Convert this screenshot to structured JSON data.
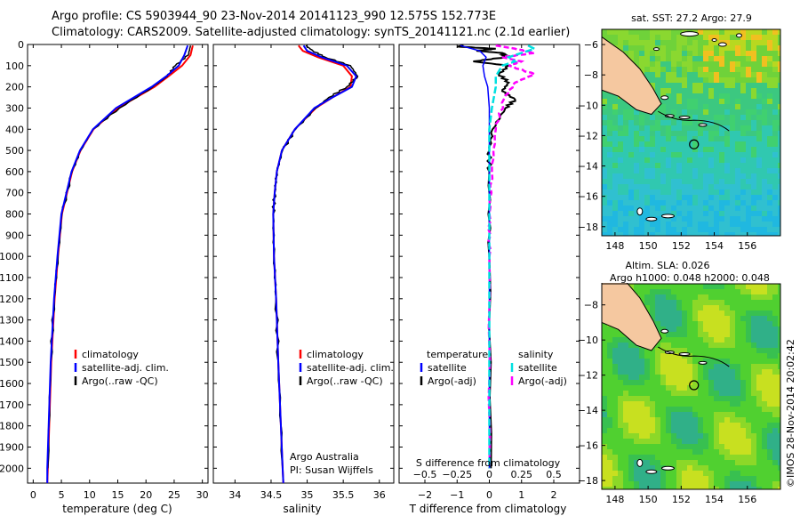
{
  "header": {
    "line1": "Argo profile: CS 5903944_90 23-Nov-2014 20141123_990 12.575S 152.773E",
    "line2": "Climatology: CARS2009. Satellite-adjusted climatology: synTS_20141121.nc (2.1d earlier)"
  },
  "colors": {
    "climatology": "#ff0000",
    "satellite": "#0000ff",
    "argo": "#000000",
    "sat_salinity": "#00e0e0",
    "argo_salinity": "#ff00ff",
    "land": "#f5c8a0"
  },
  "chart_data": [
    {
      "type": "line",
      "id": "temperature",
      "xlabel": "temperature (deg C)",
      "ylabel": "",
      "xlim": [
        -1,
        31
      ],
      "ylim": [
        2070,
        0
      ],
      "xticks": [
        0,
        5,
        10,
        15,
        20,
        25,
        30
      ],
      "xtick_labels": [
        "0",
        "5",
        "10",
        "15",
        "20",
        "25",
        "30"
      ],
      "yticks": [
        0,
        100,
        200,
        300,
        400,
        500,
        600,
        700,
        800,
        900,
        1000,
        1100,
        1200,
        1300,
        1400,
        1500,
        1600,
        1700,
        1800,
        1900,
        2000
      ],
      "ytick_labels": [
        "0",
        "100",
        "200",
        "300",
        "400",
        "500",
        "600",
        "700",
        "800",
        "900",
        "1000",
        "1100",
        "1200",
        "1300",
        "1400",
        "1500",
        "1600",
        "1700",
        "1800",
        "1900",
        "2000"
      ],
      "legend": [
        "climatology",
        "satellite-adj. clim.",
        "Argo(..raw -QC)"
      ],
      "series": [
        {
          "name": "climatology",
          "color": "#ff0000",
          "depth": [
            5,
            50,
            100,
            150,
            200,
            300,
            400,
            500,
            600,
            800,
            1000,
            1200,
            1500,
            2000,
            2070
          ],
          "values": [
            28.3,
            27.9,
            26.4,
            24.0,
            21.5,
            15.0,
            10.7,
            8.4,
            6.9,
            5.1,
            4.4,
            3.8,
            3.2,
            2.6,
            2.5
          ]
        },
        {
          "name": "satellite-adj. clim.",
          "color": "#0000ff",
          "depth": [
            5,
            50,
            100,
            150,
            200,
            300,
            400,
            500,
            600,
            800,
            1000,
            1200,
            1500,
            2000,
            2070
          ],
          "values": [
            27.4,
            26.8,
            25.8,
            23.6,
            21.0,
            14.7,
            10.6,
            8.3,
            6.8,
            5.0,
            4.3,
            3.7,
            3.1,
            2.5,
            2.5
          ]
        },
        {
          "name": "Argo(..raw -QC)",
          "color": "#000000",
          "depth": [
            5,
            50,
            100,
            150,
            200,
            300,
            400,
            500,
            600,
            800,
            1000,
            1200,
            1500,
            2000
          ],
          "values": [
            27.9,
            27.5,
            25.2,
            23.8,
            21.2,
            15.3,
            10.6,
            8.4,
            6.9,
            5.1,
            4.4,
            3.7,
            3.1,
            2.6
          ]
        }
      ]
    },
    {
      "type": "line",
      "id": "salinity",
      "xlabel": "salinity",
      "xlim": [
        33.7,
        36.2
      ],
      "ylim": [
        2070,
        0
      ],
      "xticks": [
        34,
        34.5,
        35,
        35.5,
        36
      ],
      "xtick_labels": [
        "34",
        "34.5",
        "35",
        "35.5",
        "36"
      ],
      "legend": [
        "climatology",
        "satellite-adj. clim.",
        "Argo(..raw -QC)"
      ],
      "annotation": [
        "Argo Australia",
        "PI: Susan Wijffels"
      ],
      "series": [
        {
          "name": "climatology",
          "color": "#ff0000",
          "depth": [
            5,
            30,
            60,
            100,
            150,
            200,
            250,
            300,
            400,
            500,
            600,
            700,
            800,
            1000,
            1200,
            1500,
            2000,
            2070
          ],
          "values": [
            34.88,
            34.94,
            35.15,
            35.5,
            35.62,
            35.6,
            35.35,
            35.12,
            34.83,
            34.65,
            34.58,
            34.55,
            34.53,
            34.54,
            34.57,
            34.6,
            34.66,
            34.67
          ]
        },
        {
          "name": "satellite-adj. clim.",
          "color": "#0000ff",
          "depth": [
            5,
            30,
            60,
            100,
            150,
            200,
            250,
            300,
            400,
            500,
            600,
            700,
            800,
            1000,
            1200,
            1500,
            2000,
            2070
          ],
          "values": [
            34.95,
            35.0,
            35.2,
            35.55,
            35.68,
            35.62,
            35.35,
            35.1,
            34.83,
            34.65,
            34.58,
            34.55,
            34.53,
            34.54,
            34.57,
            34.6,
            34.66,
            34.67
          ]
        },
        {
          "name": "Argo(..raw -QC)",
          "color": "#000000",
          "depth": [
            5,
            30,
            60,
            100,
            150,
            200,
            250,
            300,
            400,
            500,
            600,
            700,
            800,
            1000,
            1200,
            1500,
            2000
          ],
          "values": [
            34.98,
            35.08,
            35.25,
            35.6,
            35.7,
            35.55,
            35.3,
            35.12,
            34.84,
            34.66,
            34.58,
            34.55,
            34.53,
            34.54,
            34.57,
            34.6,
            34.66
          ]
        }
      ]
    },
    {
      "type": "line",
      "id": "difference",
      "xlabel_T": "T difference from climatology",
      "xlabel_S": "S difference from climatology",
      "xlim": [
        -2.8,
        2.8
      ],
      "ylim": [
        2070,
        0
      ],
      "xticks_T": [
        -2,
        -1,
        0,
        1,
        2
      ],
      "xtick_labels_T": [
        "−2",
        "−1",
        "0",
        "1",
        "2"
      ],
      "xticks_S": [
        -0.5,
        -0.25,
        0,
        0.25,
        0.5
      ],
      "xtick_labels_S": [
        "−0.5",
        "−0.25",
        "0",
        "0.25",
        "0.5"
      ],
      "legend_headers": [
        "temperature",
        "salinity"
      ],
      "legend": [
        "satellite",
        "Argo(-adj)",
        "satellite",
        "Argo(-adj)"
      ],
      "series": [
        {
          "name": "T satellite",
          "color": "#0000ff",
          "depth": [
            5,
            30,
            60,
            100,
            150,
            200,
            300,
            400,
            600,
            1000,
            2000
          ],
          "values": [
            -0.9,
            -0.3,
            -0.1,
            -0.2,
            -0.15,
            -0.05,
            0.0,
            0.0,
            0.0,
            0.0,
            0.0
          ]
        },
        {
          "name": "T Argo(-adj)",
          "color": "#000000",
          "depth": [
            5,
            10,
            20,
            30,
            40,
            60,
            80,
            100,
            140,
            180,
            220,
            260,
            300,
            400,
            500,
            600,
            1000,
            2000
          ],
          "values": [
            -0.8,
            -1.0,
            0.2,
            -0.4,
            0.4,
            0.5,
            -0.5,
            0.6,
            0.3,
            0.6,
            0.4,
            0.8,
            0.5,
            0.1,
            0.0,
            0.0,
            0.0,
            0.05
          ]
        },
        {
          "name": "S satellite",
          "color": "#00e0e0",
          "depth": [
            5,
            20,
            40,
            60,
            80,
            100,
            150,
            200,
            300,
            400,
            600,
            1000,
            2000
          ],
          "values": [
            0.3,
            0.35,
            0.25,
            0.15,
            0.2,
            0.1,
            0.05,
            0.05,
            0.02,
            0.0,
            0.0,
            0.0,
            0.0
          ]
        },
        {
          "name": "S Argo(-adj)",
          "color": "#ff00ff",
          "depth": [
            5,
            20,
            40,
            60,
            80,
            100,
            140,
            180,
            250,
            400,
            600,
            800,
            1000,
            2000
          ],
          "values": [
            0.05,
            0.2,
            0.35,
            0.1,
            0.25,
            0.15,
            0.35,
            0.2,
            0.12,
            0.05,
            0.02,
            0.0,
            0.0,
            0.0
          ]
        }
      ]
    },
    {
      "type": "heatmap",
      "id": "sst-map",
      "title": "sat. SST: 27.2  Argo: 27.9",
      "xlim": [
        147.2,
        158
      ],
      "ylim": [
        -18.6,
        -5
      ],
      "xticks": [
        148,
        150,
        152,
        154,
        156
      ],
      "xtick_labels": [
        "148",
        "150",
        "152",
        "154",
        "156"
      ],
      "yticks": [
        -6,
        -8,
        -10,
        -12,
        -14,
        -16,
        -18
      ],
      "ytick_labels": [
        "−6",
        "−8",
        "−10",
        "−12",
        "−14",
        "−16",
        "−18"
      ],
      "marker": [
        152.773,
        -12.575
      ]
    },
    {
      "type": "heatmap",
      "id": "sla-map",
      "title": "Altim. SLA: 0.026",
      "subtitle": "Argo h1000: 0.048 h2000: 0.048",
      "xlim": [
        147.2,
        158
      ],
      "ylim": [
        -18.5,
        -6.8
      ],
      "xticks": [
        148,
        150,
        152,
        154,
        156
      ],
      "xtick_labels": [
        "148",
        "150",
        "152",
        "154",
        "156"
      ],
      "yticks": [
        -8,
        -10,
        -12,
        -14,
        -16,
        -18
      ],
      "ytick_labels": [
        "−8",
        "−10",
        "−12",
        "−14",
        "−16",
        "−18"
      ],
      "marker": [
        152.773,
        -12.575
      ]
    }
  ],
  "credit": "©IMOS 28-Nov-2014 20:02:42"
}
